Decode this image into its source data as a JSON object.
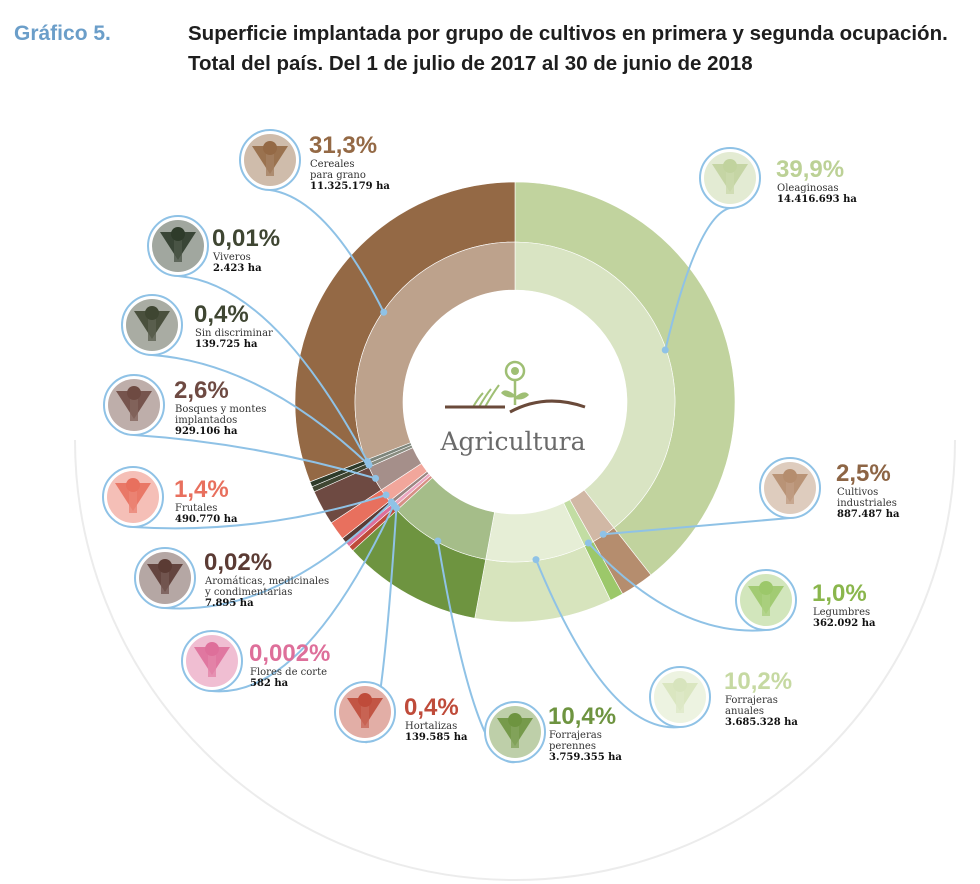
{
  "header": {
    "label": "Gráfico 5.",
    "title_line1": "Superficie implantada por grupo de cultivos en primera y segunda ocupación.",
    "title_line2": "Total del país. Del 1 de julio de 2017 al 30 de junio de 2018"
  },
  "chart_data": {
    "type": "pie",
    "variant": "donut",
    "center_label": "Agricultura",
    "slices": [
      {
        "key": "oleaginosas",
        "pct_label": "39,9%",
        "value_pct": 39.9,
        "name_lines": [
          "Oleaginosas"
        ],
        "ha": "14.416.693 ha",
        "color": "#c1d39e"
      },
      {
        "key": "industriales",
        "pct_label": "2,5%",
        "value_pct": 2.5,
        "name_lines": [
          "Cultivos",
          "industriales"
        ],
        "ha": "887.487 ha",
        "color": "#b58d6e"
      },
      {
        "key": "legumbres",
        "pct_label": "1,0%",
        "value_pct": 1.0,
        "name_lines": [
          "Legumbres"
        ],
        "ha": "362.092 ha",
        "color": "#9cc86a"
      },
      {
        "key": "forr_anuales",
        "pct_label": "10,2%",
        "value_pct": 10.2,
        "name_lines": [
          "Forrajeras",
          "anuales"
        ],
        "ha": "3.685.328 ha",
        "color": "#d7e4bd"
      },
      {
        "key": "forr_perennes",
        "pct_label": "10,4%",
        "value_pct": 10.4,
        "name_lines": [
          "Forrajeras",
          "perennes"
        ],
        "ha": "3.759.355 ha",
        "color": "#6e9440"
      },
      {
        "key": "hortalizas",
        "pct_label": "0,4%",
        "value_pct": 0.4,
        "name_lines": [
          "Hortalizas"
        ],
        "ha": "139.585 ha",
        "color": "#bf4b3a"
      },
      {
        "key": "flores",
        "pct_label": "0,002%",
        "value_pct": 0.002,
        "name_lines": [
          "Flores de corte"
        ],
        "ha": "582 ha",
        "color": "#de6f9a"
      },
      {
        "key": "aromaticas",
        "pct_label": "0,02%",
        "value_pct": 0.02,
        "name_lines": [
          "Aromáticas, medicinales",
          "y condimentarias"
        ],
        "ha": "7.895 ha",
        "color": "#5b3b34"
      },
      {
        "key": "frutales",
        "pct_label": "1,4%",
        "value_pct": 1.4,
        "name_lines": [
          "Frutales"
        ],
        "ha": "490.770 ha",
        "color": "#e8705e"
      },
      {
        "key": "bosques",
        "pct_label": "2,6%",
        "value_pct": 2.6,
        "name_lines": [
          "Bosques y montes",
          "implantados"
        ],
        "ha": "929.106 ha",
        "color": "#6e4a42"
      },
      {
        "key": "sin_discriminar",
        "pct_label": "0,4%",
        "value_pct": 0.4,
        "name_lines": [
          "Sin discriminar"
        ],
        "ha": "139.725 ha",
        "color": "#3f4632"
      },
      {
        "key": "viveros",
        "pct_label": "0,01%",
        "value_pct": 0.01,
        "name_lines": [
          "Viveros"
        ],
        "ha": "2.423 ha",
        "color": "#2e3b2a"
      },
      {
        "key": "cereales",
        "pct_label": "31,3%",
        "value_pct": 31.3,
        "name_lines": [
          "Cereales",
          "para grano"
        ],
        "ha": "11.325.179 ha",
        "color": "#946945"
      }
    ]
  }
}
